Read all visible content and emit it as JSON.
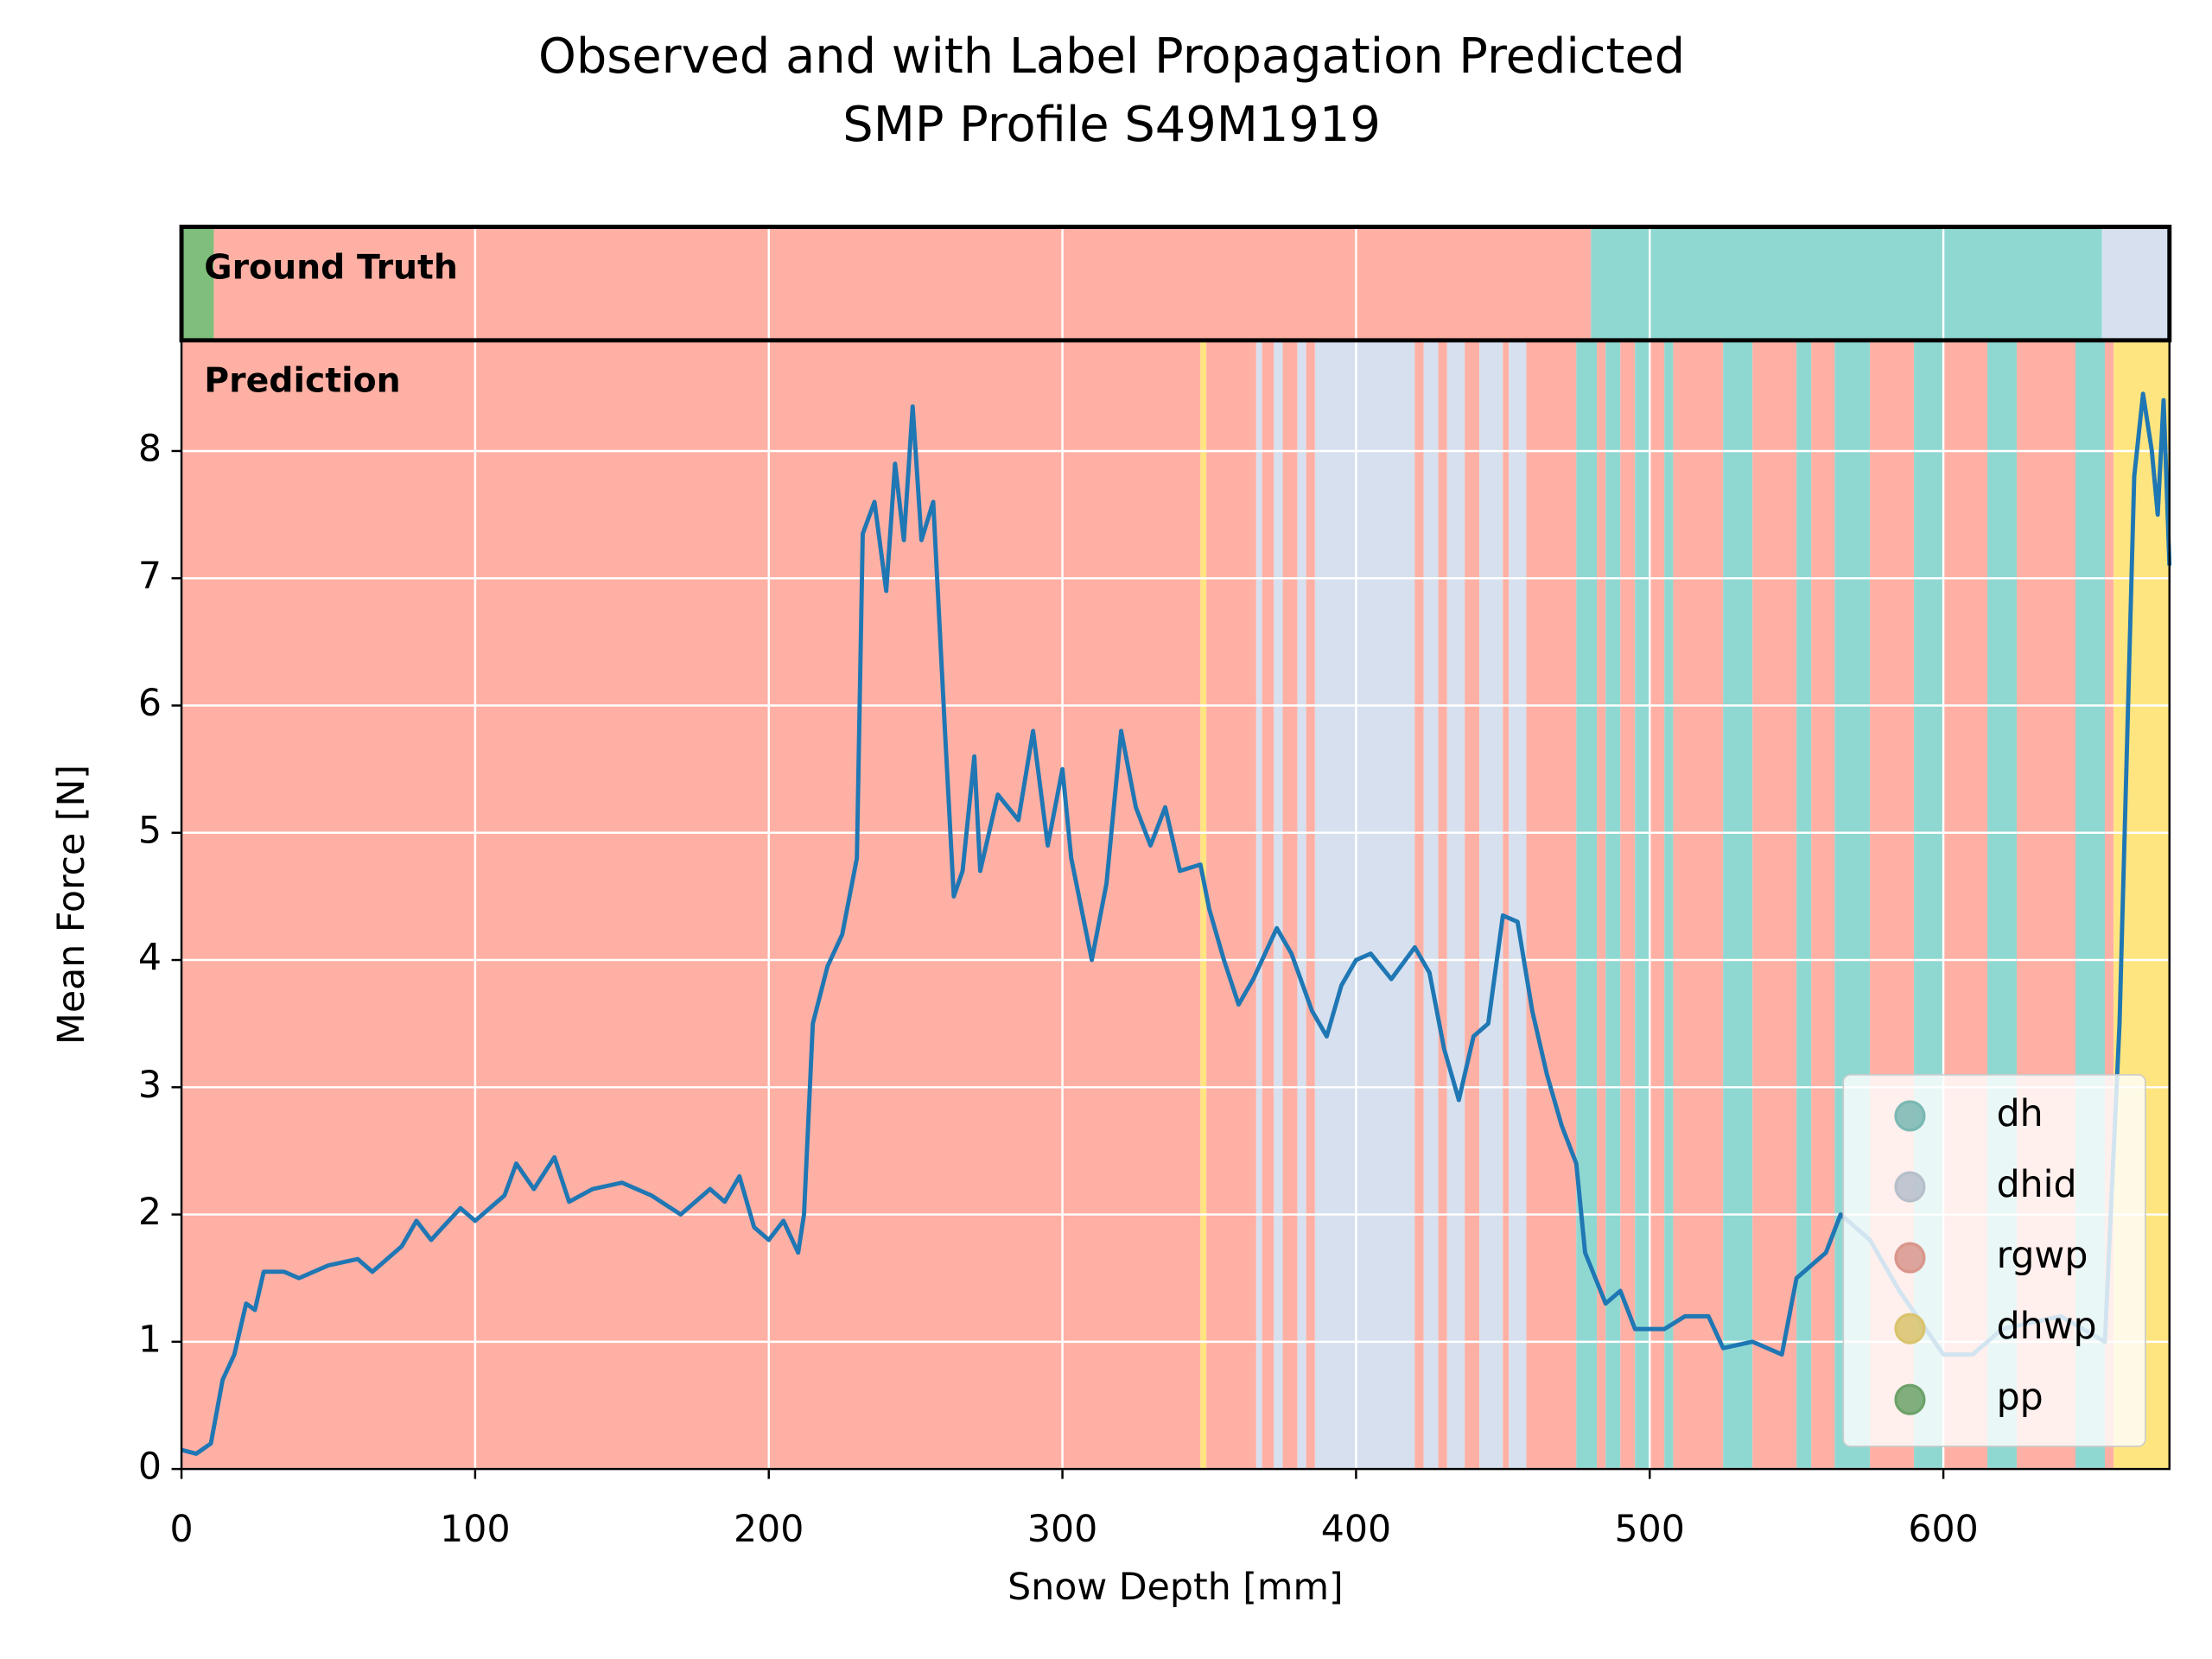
{
  "chart_data": {
    "type": "line",
    "title": "Observed and with Label Propagation Predicted",
    "subtitle": "SMP Profile S49M1919",
    "xlabel": "Snow Depth [mm]",
    "ylabel": "Mean Force [N]",
    "annotations": [
      "Ground Truth",
      "Prediction"
    ],
    "xlim": [
      0,
      677
    ],
    "ylim": [
      0,
      8.87
    ],
    "xticks": [
      0,
      100,
      200,
      300,
      400,
      500,
      600
    ],
    "yticks": [
      0,
      1,
      2,
      3,
      4,
      5,
      6,
      7,
      8
    ],
    "grid": true,
    "legend_position": "lower right",
    "legend": [
      {
        "name": "dh",
        "color": "#8fd8d2"
      },
      {
        "name": "dhid",
        "color": "#d6e0ee"
      },
      {
        "name": "rgwp",
        "color": "#ffb0a4"
      },
      {
        "name": "dhwp",
        "color": "#ffe57f"
      },
      {
        "name": "pp",
        "color": "#7fbf7b"
      }
    ],
    "ground_truth": [
      {
        "start": 0,
        "end": 11,
        "label": "pp"
      },
      {
        "start": 11,
        "end": 480,
        "label": "rgwp"
      },
      {
        "start": 480,
        "end": 654,
        "label": "dh"
      },
      {
        "start": 654,
        "end": 677,
        "label": "dhid"
      }
    ],
    "prediction": [
      {
        "start": 0,
        "end": 347,
        "label": "rgwp"
      },
      {
        "start": 347,
        "end": 349,
        "label": "dhwp"
      },
      {
        "start": 349,
        "end": 366,
        "label": "rgwp"
      },
      {
        "start": 366,
        "end": 368,
        "label": "dhid"
      },
      {
        "start": 368,
        "end": 372,
        "label": "rgwp"
      },
      {
        "start": 372,
        "end": 375,
        "label": "dhid"
      },
      {
        "start": 375,
        "end": 380,
        "label": "rgwp"
      },
      {
        "start": 380,
        "end": 383,
        "label": "dhid"
      },
      {
        "start": 383,
        "end": 386,
        "label": "rgwp"
      },
      {
        "start": 386,
        "end": 420,
        "label": "dhid"
      },
      {
        "start": 420,
        "end": 423,
        "label": "rgwp"
      },
      {
        "start": 423,
        "end": 428,
        "label": "dhid"
      },
      {
        "start": 428,
        "end": 431,
        "label": "rgwp"
      },
      {
        "start": 431,
        "end": 437,
        "label": "dhid"
      },
      {
        "start": 437,
        "end": 442,
        "label": "rgwp"
      },
      {
        "start": 442,
        "end": 450,
        "label": "dhid"
      },
      {
        "start": 450,
        "end": 452,
        "label": "rgwp"
      },
      {
        "start": 452,
        "end": 458,
        "label": "dhid"
      },
      {
        "start": 458,
        "end": 475,
        "label": "rgwp"
      },
      {
        "start": 475,
        "end": 482,
        "label": "dh"
      },
      {
        "start": 482,
        "end": 485,
        "label": "rgwp"
      },
      {
        "start": 485,
        "end": 490,
        "label": "dh"
      },
      {
        "start": 490,
        "end": 495,
        "label": "rgwp"
      },
      {
        "start": 495,
        "end": 500,
        "label": "dh"
      },
      {
        "start": 500,
        "end": 505,
        "label": "rgwp"
      },
      {
        "start": 505,
        "end": 508,
        "label": "dh"
      },
      {
        "start": 508,
        "end": 525,
        "label": "rgwp"
      },
      {
        "start": 525,
        "end": 535,
        "label": "dh"
      },
      {
        "start": 535,
        "end": 550,
        "label": "rgwp"
      },
      {
        "start": 550,
        "end": 555,
        "label": "dh"
      },
      {
        "start": 555,
        "end": 563,
        "label": "rgwp"
      },
      {
        "start": 563,
        "end": 575,
        "label": "dh"
      },
      {
        "start": 575,
        "end": 590,
        "label": "rgwp"
      },
      {
        "start": 590,
        "end": 600,
        "label": "dh"
      },
      {
        "start": 600,
        "end": 615,
        "label": "rgwp"
      },
      {
        "start": 615,
        "end": 625,
        "label": "dh"
      },
      {
        "start": 625,
        "end": 645,
        "label": "rgwp"
      },
      {
        "start": 645,
        "end": 655,
        "label": "dh"
      },
      {
        "start": 655,
        "end": 658,
        "label": "rgwp"
      },
      {
        "start": 658,
        "end": 677,
        "label": "dhwp"
      }
    ],
    "x": [
      0,
      5,
      10,
      14,
      18,
      20,
      22,
      25,
      28,
      35,
      40,
      50,
      60,
      65,
      75,
      80,
      85,
      95,
      100,
      110,
      114,
      120,
      127,
      132,
      140,
      150,
      160,
      170,
      180,
      185,
      190,
      195,
      200,
      205,
      210,
      212,
      215,
      220,
      225,
      230,
      232,
      236,
      240,
      243,
      246,
      249,
      252,
      256,
      260,
      263,
      266,
      270,
      272,
      278,
      285,
      290,
      295,
      300,
      303,
      310,
      315,
      320,
      325,
      330,
      335,
      340,
      347,
      350,
      355,
      360,
      365,
      373,
      378,
      385,
      390,
      395,
      400,
      405,
      412,
      420,
      425,
      430,
      435,
      440,
      445,
      450,
      455,
      460,
      465,
      470,
      475,
      478,
      485,
      490,
      495,
      505,
      512,
      520,
      525,
      535,
      545,
      550,
      560,
      565,
      575,
      585,
      600,
      610,
      620,
      640,
      655,
      660,
      665,
      668,
      671,
      673,
      675,
      677
    ],
    "series": [
      {
        "name": "Mean Force",
        "color": "#1f77b4",
        "values": [
          0.15,
          0.12,
          0.2,
          0.7,
          0.9,
          1.1,
          1.3,
          1.25,
          1.55,
          1.55,
          1.5,
          1.6,
          1.65,
          1.55,
          1.75,
          1.95,
          1.8,
          2.05,
          1.95,
          2.15,
          2.4,
          2.2,
          2.45,
          2.1,
          2.2,
          2.25,
          2.15,
          2.0,
          2.2,
          2.1,
          2.3,
          1.9,
          1.8,
          1.95,
          1.7,
          2.0,
          3.5,
          3.95,
          4.2,
          4.8,
          7.35,
          7.6,
          6.9,
          7.9,
          7.3,
          8.35,
          7.3,
          7.6,
          5.8,
          4.5,
          4.7,
          5.6,
          4.7,
          5.3,
          5.1,
          5.8,
          4.9,
          5.5,
          4.8,
          4.0,
          4.6,
          5.8,
          5.2,
          4.9,
          5.2,
          4.7,
          4.75,
          4.4,
          4.0,
          3.65,
          3.85,
          4.25,
          4.05,
          3.6,
          3.4,
          3.8,
          4.0,
          4.05,
          3.85,
          4.1,
          3.9,
          3.3,
          2.9,
          3.4,
          3.5,
          4.35,
          4.3,
          3.6,
          3.1,
          2.7,
          2.4,
          1.7,
          1.3,
          1.4,
          1.1,
          1.1,
          1.2,
          1.2,
          0.95,
          1.0,
          0.9,
          1.5,
          1.7,
          2.0,
          1.8,
          1.4,
          0.9,
          0.9,
          1.1,
          1.2,
          1.0,
          3.5,
          7.8,
          8.45,
          8.0,
          7.5,
          8.4,
          7.1
        ]
      }
    ]
  }
}
